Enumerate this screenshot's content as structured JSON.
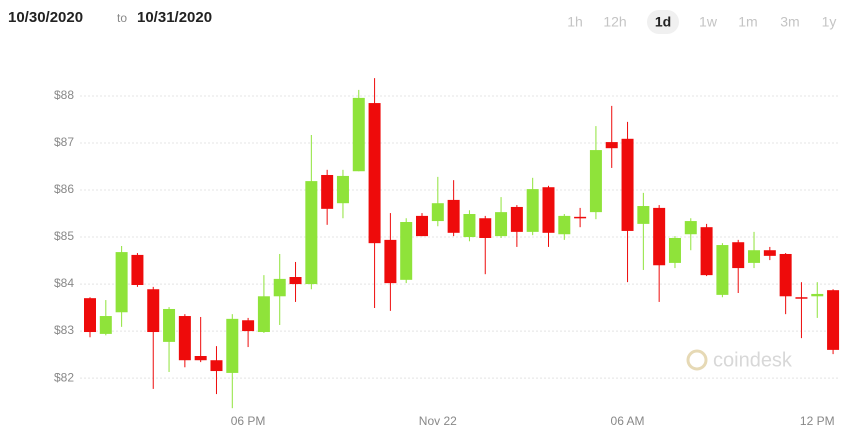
{
  "header": {
    "from": "10/30/2020",
    "to_word": "to",
    "to": "10/31/2020"
  },
  "ranges": [
    {
      "label": "1h",
      "active": false
    },
    {
      "label": "12h",
      "active": false
    },
    {
      "label": "1d",
      "active": true
    },
    {
      "label": "1w",
      "active": false
    },
    {
      "label": "1m",
      "active": false
    },
    {
      "label": "3m",
      "active": false
    },
    {
      "label": "1y",
      "active": false
    }
  ],
  "watermark": "coindesk",
  "chart_data": {
    "type": "candlestick",
    "categories": [
      null,
      null,
      null,
      null,
      null,
      null,
      null,
      null,
      null,
      null,
      "06 PM",
      null,
      null,
      null,
      null,
      null,
      null,
      null,
      null,
      null,
      null,
      null,
      "Nov 22",
      null,
      null,
      null,
      null,
      null,
      null,
      null,
      null,
      null,
      null,
      null,
      "06 AM",
      null,
      null,
      null,
      null,
      null,
      null,
      null,
      null,
      null,
      null,
      null,
      "12 PM",
      null
    ],
    "open": [
      83.7,
      82.94,
      83.4,
      84.62,
      83.89,
      82.77,
      83.32,
      82.47,
      82.38,
      82.11,
      83.23,
      82.98,
      83.74,
      84.15,
      84.0,
      86.32,
      85.72,
      86.4,
      87.85,
      84.94,
      84.09,
      85.45,
      85.34,
      85.79,
      85.0,
      85.4,
      85.02,
      85.64,
      85.11,
      86.06,
      85.06,
      85.43,
      85.53,
      87.02,
      87.09,
      85.28,
      85.62,
      84.45,
      85.06,
      85.21,
      83.77,
      84.89,
      84.45,
      84.72,
      84.64,
      83.72,
      83.74,
      83.87
    ],
    "high": [
      83.72,
      83.66,
      84.81,
      84.66,
      83.94,
      83.51,
      83.36,
      83.3,
      82.68,
      83.36,
      83.28,
      84.19,
      84.64,
      84.47,
      87.17,
      86.43,
      86.43,
      88.13,
      88.38,
      85.51,
      85.4,
      85.51,
      86.28,
      86.21,
      85.57,
      85.45,
      85.85,
      85.68,
      86.26,
      86.09,
      85.49,
      85.62,
      87.36,
      87.79,
      87.45,
      85.94,
      85.68,
      85.02,
      85.4,
      85.28,
      84.87,
      84.94,
      85.11,
      84.79,
      84.66,
      84.04,
      84.04,
      83.89
    ],
    "low": [
      82.87,
      82.91,
      83.09,
      83.94,
      81.77,
      82.13,
      82.23,
      82.34,
      81.66,
      81.36,
      82.66,
      82.96,
      83.13,
      83.62,
      83.89,
      85.26,
      85.4,
      86.4,
      83.49,
      83.43,
      84.02,
      85.02,
      85.23,
      85.02,
      84.91,
      84.21,
      84.98,
      84.79,
      85.04,
      84.79,
      84.94,
      85.21,
      85.38,
      86.47,
      84.04,
      84.3,
      83.62,
      84.34,
      84.72,
      84.17,
      83.72,
      83.81,
      84.34,
      84.51,
      83.36,
      82.85,
      83.28,
      82.51
    ],
    "close": [
      82.98,
      83.32,
      84.68,
      83.98,
      82.98,
      83.47,
      82.38,
      82.38,
      82.15,
      83.26,
      83.0,
      83.74,
      84.11,
      84.0,
      86.19,
      85.6,
      86.3,
      87.96,
      84.87,
      84.02,
      85.32,
      85.02,
      85.72,
      85.09,
      85.49,
      84.98,
      85.53,
      85.11,
      86.02,
      85.09,
      85.45,
      85.43,
      86.85,
      86.89,
      85.13,
      85.66,
      84.4,
      84.98,
      85.34,
      84.19,
      84.83,
      84.34,
      84.72,
      84.6,
      83.74,
      83.7,
      83.79,
      82.6
    ],
    "up_color": "#8fe33a",
    "down_color": "#ee0b0b",
    "ylim": [
      81.3,
      88.75
    ],
    "yticks": [
      {
        "value": 82,
        "label": "$82"
      },
      {
        "value": 83,
        "label": "$83"
      },
      {
        "value": 84,
        "label": "$84"
      },
      {
        "value": 85,
        "label": "$85"
      },
      {
        "value": 86,
        "label": "$86"
      },
      {
        "value": 87,
        "label": "$87"
      },
      {
        "value": 88,
        "label": "$88"
      }
    ],
    "grid": true
  }
}
